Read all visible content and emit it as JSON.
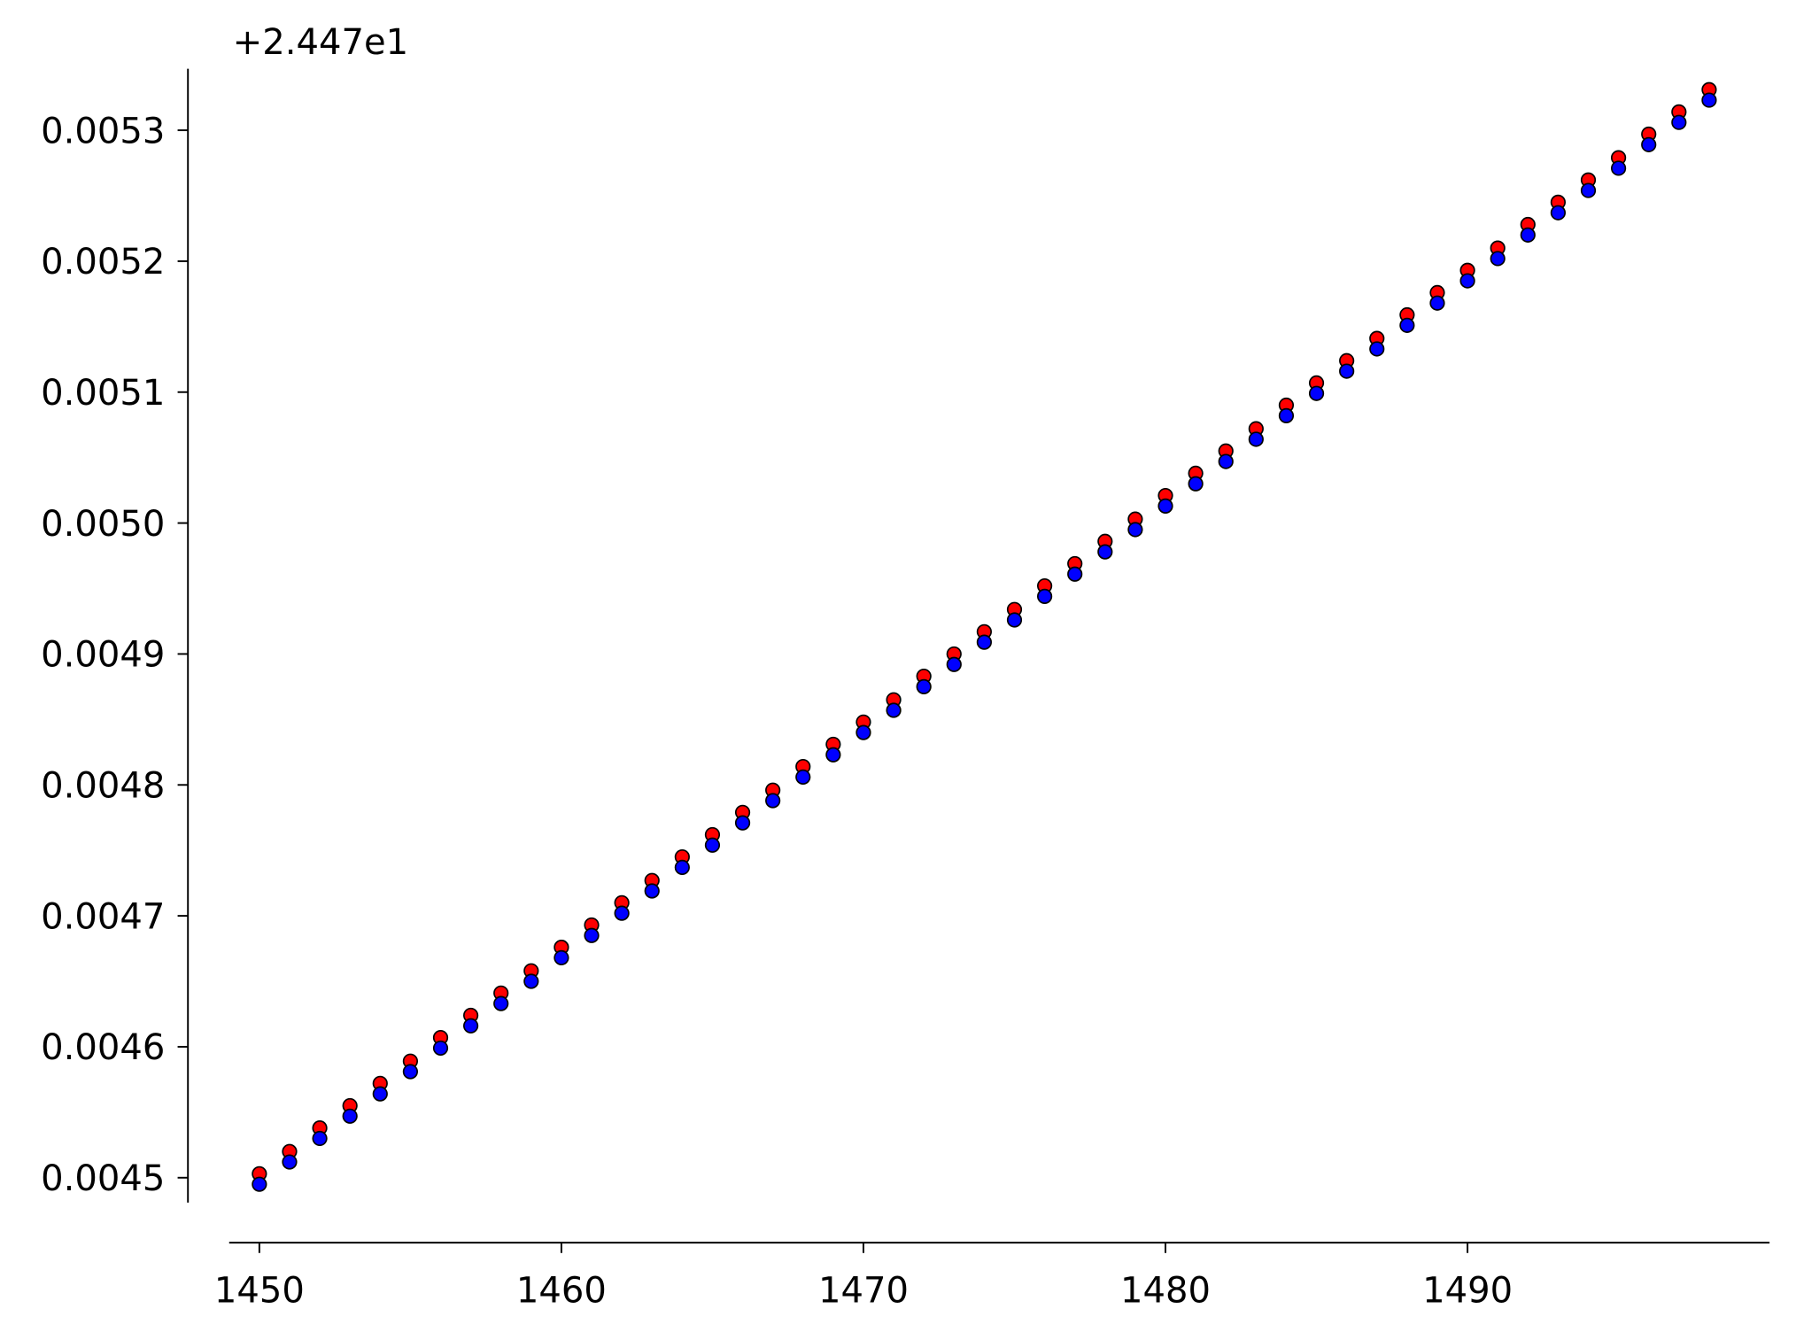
{
  "chart_data": {
    "type": "scatter",
    "offset_text": "+2.447e1",
    "x": [
      1450,
      1451,
      1452,
      1453,
      1454,
      1455,
      1456,
      1457,
      1458,
      1459,
      1460,
      1461,
      1462,
      1463,
      1464,
      1465,
      1466,
      1467,
      1468,
      1469,
      1470,
      1471,
      1472,
      1473,
      1474,
      1475,
      1476,
      1477,
      1478,
      1479,
      1480,
      1481,
      1482,
      1483,
      1484,
      1485,
      1486,
      1487,
      1488,
      1489,
      1490,
      1491,
      1492,
      1493,
      1494,
      1495,
      1496,
      1497,
      1498
    ],
    "series": [
      {
        "color": "#ff0000",
        "values": [
          0.004503,
          0.00452,
          0.004538,
          0.004555,
          0.004572,
          0.004589,
          0.004607,
          0.004624,
          0.004641,
          0.004658,
          0.004676,
          0.004693,
          0.00471,
          0.004727,
          0.004745,
          0.004762,
          0.004779,
          0.004796,
          0.004814,
          0.004831,
          0.004848,
          0.004865,
          0.004883,
          0.0049,
          0.004917,
          0.004934,
          0.004952,
          0.004969,
          0.004986,
          0.005003,
          0.005021,
          0.005038,
          0.005055,
          0.005072,
          0.00509,
          0.005107,
          0.005124,
          0.005141,
          0.005159,
          0.005176,
          0.005193,
          0.00521,
          0.005228,
          0.005245,
          0.005262,
          0.005279,
          0.005297,
          0.005314,
          0.005331
        ]
      },
      {
        "color": "#0000ff",
        "values": [
          0.004495,
          0.004512,
          0.00453,
          0.004547,
          0.004564,
          0.004581,
          0.004599,
          0.004616,
          0.004633,
          0.00465,
          0.004668,
          0.004685,
          0.004702,
          0.004719,
          0.004737,
          0.004754,
          0.004771,
          0.004788,
          0.004806,
          0.004823,
          0.00484,
          0.004857,
          0.004875,
          0.004892,
          0.004909,
          0.004926,
          0.004944,
          0.004961,
          0.004978,
          0.004995,
          0.005013,
          0.00503,
          0.005047,
          0.005064,
          0.005082,
          0.005099,
          0.005116,
          0.005133,
          0.005151,
          0.005168,
          0.005185,
          0.005202,
          0.00522,
          0.005237,
          0.005254,
          0.005271,
          0.005289,
          0.005306,
          0.005323
        ]
      }
    ],
    "xlim": [
      1449,
      1500
    ],
    "xticks": [
      1450,
      1460,
      1470,
      1480,
      1490
    ],
    "ylim": [
      0.004481,
      0.005347
    ],
    "yticks": [
      0.0045,
      0.0046,
      0.0047,
      0.0048,
      0.0049,
      {
        "value": 0.005,
        "label": "0.0050"
      },
      0.0051,
      0.0052,
      0.0053
    ]
  }
}
